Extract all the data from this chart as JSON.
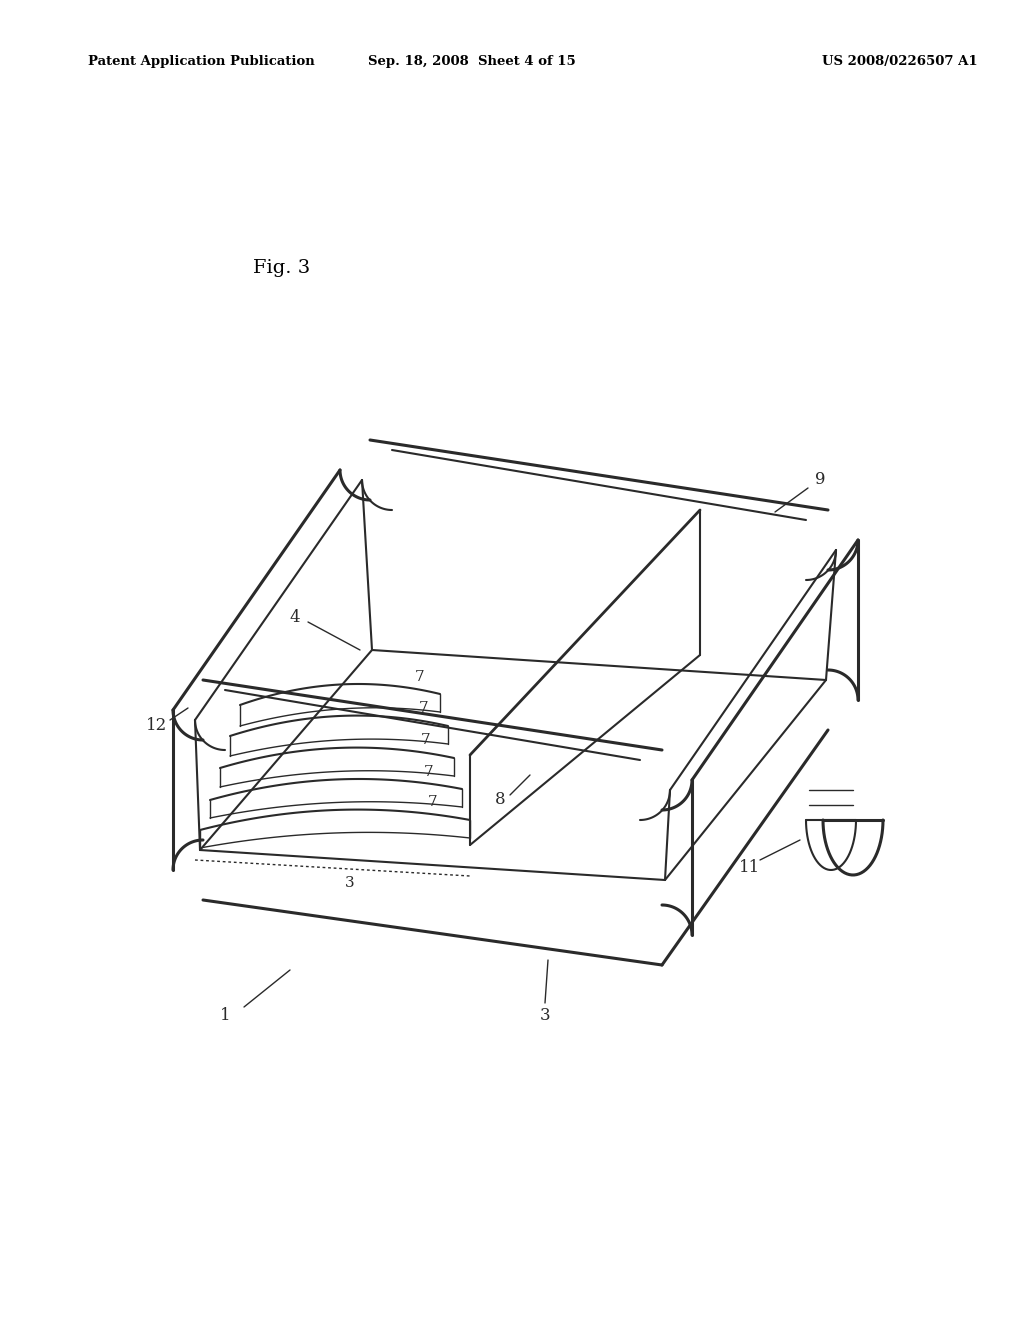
{
  "background_color": "#ffffff",
  "line_color": "#2a2a2a",
  "header_left": "Patent Application Publication",
  "header_mid": "Sep. 18, 2008  Sheet 4 of 15",
  "header_right": "US 2008/0226507 A1",
  "fig_label": "Fig. 3"
}
